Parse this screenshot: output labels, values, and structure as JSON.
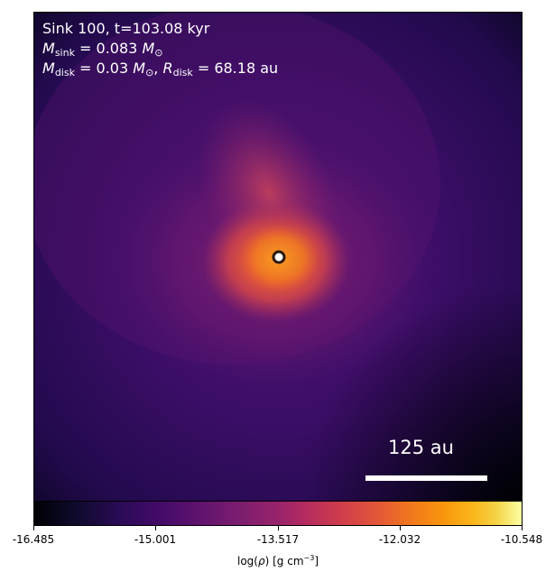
{
  "annotations": {
    "line1": "Sink 100, t=103.08 kyr",
    "line2_m": "M",
    "line2_sub": "sink",
    "line2_rest": "= 0.083",
    "line2_unit": "M",
    "line2_unit_sub": "⊙",
    "line3_m": "M",
    "line3_sub": "disk",
    "line3_rest": "= 0.03",
    "line3_unit": "M",
    "line3_unit_sub": "⊙",
    "line3_comma": ", ",
    "line3_r": "R",
    "line3_rsub": "disk",
    "line3_rrest": "= 68.18 au"
  },
  "scalebar": {
    "label": "125 au"
  },
  "colorbar": {
    "colormap": "inferno",
    "ticks": [
      "-16.485",
      "-15.001",
      "-13.517",
      "-12.032",
      "-10.548"
    ],
    "label_prefix": "log(",
    "label_rho": "ρ",
    "label_suffix": ") [g cm",
    "label_exp": "−3",
    "label_close": "]"
  },
  "colors": {
    "background_dark": "#2a0a55",
    "disk_core": "#f0652a",
    "sink_marker_fill": "#ffffff",
    "sink_marker_edge": "#2b1a0a"
  }
}
